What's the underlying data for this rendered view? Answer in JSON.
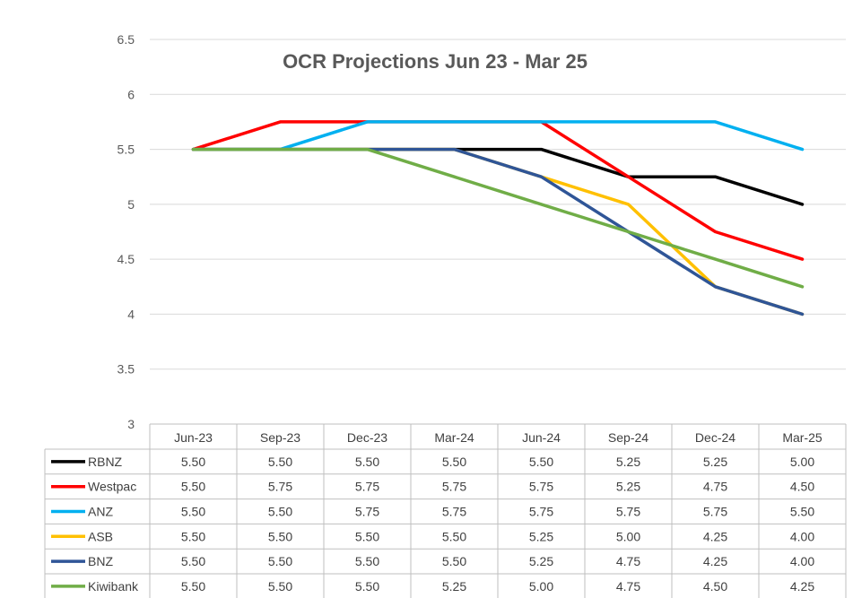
{
  "chart_data": {
    "type": "line",
    "title": "OCR Projections Jun 23 - Mar 25",
    "xlabel": "",
    "ylabel": "",
    "ylim": [
      3,
      6.5
    ],
    "yticks": [
      "3",
      "3.5",
      "4",
      "4.5",
      "5",
      "5.5",
      "6",
      "6.5"
    ],
    "grid": true,
    "legend": "data-table",
    "categories": [
      "Jun-23",
      "Sep-23",
      "Dec-23",
      "Mar-24",
      "Jun-24",
      "Sep-24",
      "Dec-24",
      "Mar-25"
    ],
    "series": [
      {
        "name": "RBNZ",
        "color": "#000000",
        "values": [
          5.5,
          5.5,
          5.5,
          5.5,
          5.5,
          5.25,
          5.25,
          5.0
        ],
        "labels": [
          "5.50",
          "5.50",
          "5.50",
          "5.50",
          "5.50",
          "5.25",
          "5.25",
          "5.00"
        ]
      },
      {
        "name": "Westpac",
        "color": "#ff0000",
        "values": [
          5.5,
          5.75,
          5.75,
          5.75,
          5.75,
          5.25,
          4.75,
          4.5
        ],
        "labels": [
          "5.50",
          "5.75",
          "5.75",
          "5.75",
          "5.75",
          "5.25",
          "4.75",
          "4.50"
        ]
      },
      {
        "name": "ANZ",
        "color": "#00b0f0",
        "values": [
          5.5,
          5.5,
          5.75,
          5.75,
          5.75,
          5.75,
          5.75,
          5.5
        ],
        "labels": [
          "5.50",
          "5.50",
          "5.75",
          "5.75",
          "5.75",
          "5.75",
          "5.75",
          "5.50"
        ]
      },
      {
        "name": "ASB",
        "color": "#ffc000",
        "values": [
          5.5,
          5.5,
          5.5,
          5.5,
          5.25,
          5.0,
          4.25,
          4.0
        ],
        "labels": [
          "5.50",
          "5.50",
          "5.50",
          "5.50",
          "5.25",
          "5.00",
          "4.25",
          "4.00"
        ]
      },
      {
        "name": "BNZ",
        "color": "#2f5597",
        "values": [
          5.5,
          5.5,
          5.5,
          5.5,
          5.25,
          4.75,
          4.25,
          4.0
        ],
        "labels": [
          "5.50",
          "5.50",
          "5.50",
          "5.50",
          "5.25",
          "4.75",
          "4.25",
          "4.00"
        ]
      },
      {
        "name": "Kiwibank",
        "color": "#70ad47",
        "values": [
          5.5,
          5.5,
          5.5,
          5.25,
          5.0,
          4.75,
          4.5,
          4.25
        ],
        "labels": [
          "5.50",
          "5.50",
          "5.50",
          "5.25",
          "5.00",
          "4.75",
          "4.50",
          "4.25"
        ]
      }
    ]
  }
}
